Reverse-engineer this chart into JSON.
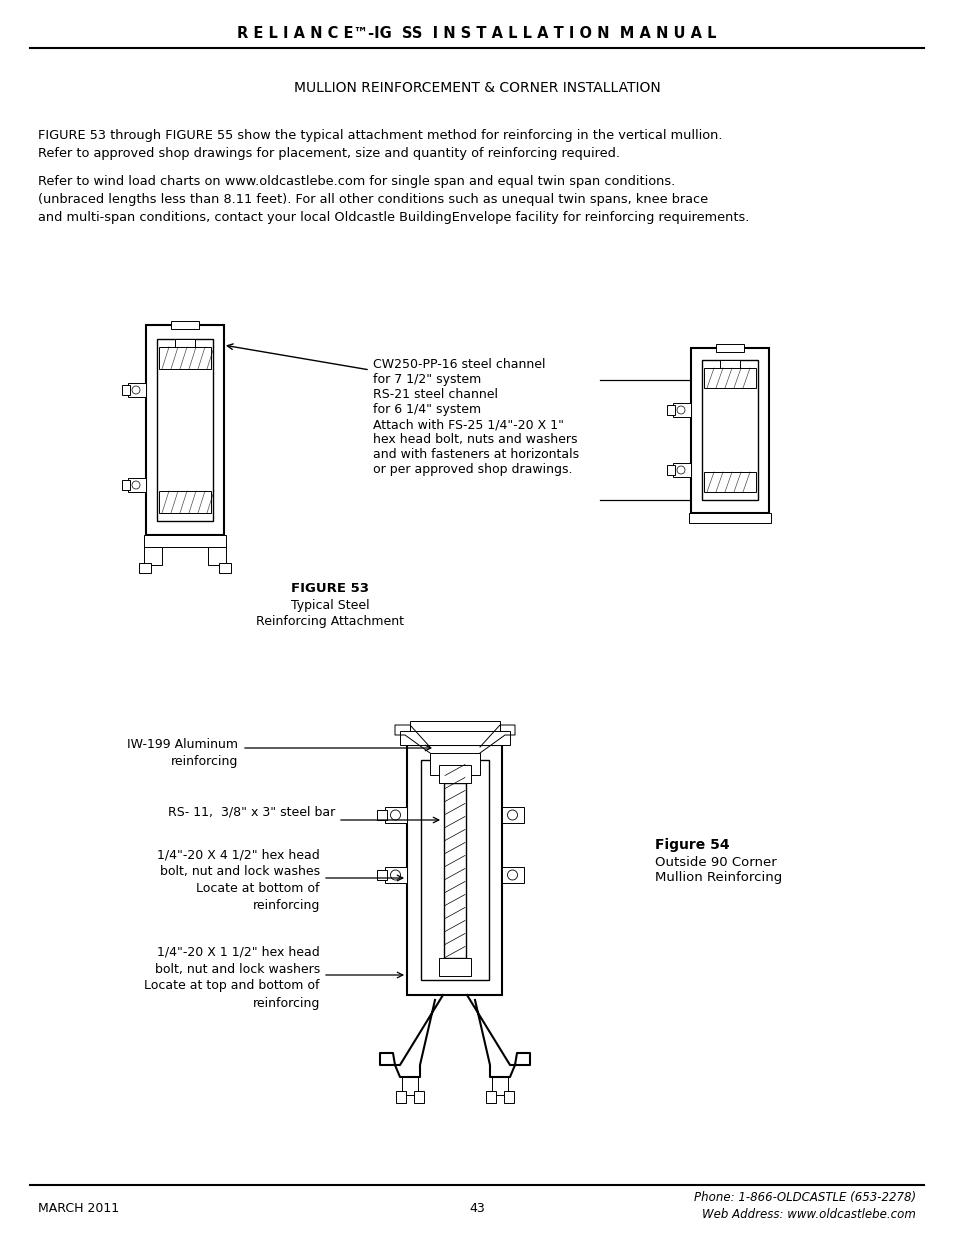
{
  "page_title": "R E L I A N C E™-IG  SS  I N S T A L L A T I O N  M A N U A L",
  "section_title": "MULLION REINFORCEMENT & CORNER INSTALLATION",
  "p1l1": "FIGURE 53 through FIGURE 55 show the typical attachment method for reinforcing in the vertical mullion.",
  "p1l2": "Refer to approved shop drawings for placement, size and quantity of reinforcing required.",
  "p2l1": "Refer to wind load charts on www.oldcastlebe.com for single span and equal twin span conditions.",
  "p2l2": "(unbraced lengths less than 8.11 feet). For all other conditions such as unequal twin spans, knee brace",
  "p2l3": "and multi-span conditions, contact your local Oldcastle BuildingEnvelope facility for reinforcing requirements.",
  "fig53_label": "FIGURE 53",
  "fig53_sub1": "Typical Steel",
  "fig53_sub2": "Reinforcing Attachment",
  "fig53_annot": "CW250-PP-16 steel channel\nfor 7 1/2\" system\nRS-21 steel channel\nfor 6 1/4\" system\nAttach with FS-25 1/4\"-20 X 1\"\nhex head bolt, nuts and washers\nand with fasteners at horizontals\nor per approved shop drawings.",
  "fig54_label": "Figure 54",
  "fig54_sub1": "Outside 90 Corner",
  "fig54_sub2": "Mullion Reinforcing",
  "fig54_annot1_line1": "IW-199 Aluminum",
  "fig54_annot1_line2": "reinforcing",
  "fig54_annot2": "RS- 11,  3/8\" x 3\" steel bar",
  "fig54_annot3_line1": "1/4\"-20 X 4 1/2\" hex head",
  "fig54_annot3_line2": "bolt, nut and lock washes",
  "fig54_annot3_line3": "Locate at bottom of",
  "fig54_annot3_line4": "reinforcing",
  "fig54_annot4_line1": "1/4\"-20 X 1 1/2\" hex head",
  "fig54_annot4_line2": "bolt, nut and lock washers",
  "fig54_annot4_line3": "Locate at top and bottom of",
  "fig54_annot4_line4": "reinforcing",
  "footer_left": "MARCH 2011",
  "footer_center": "43",
  "footer_right1": "Phone: 1-866-OLDCASTLE (653-2278)",
  "footer_right2": "Web Address: www.oldcastlebe.com",
  "bg_color": "#ffffff",
  "text_color": "#000000"
}
